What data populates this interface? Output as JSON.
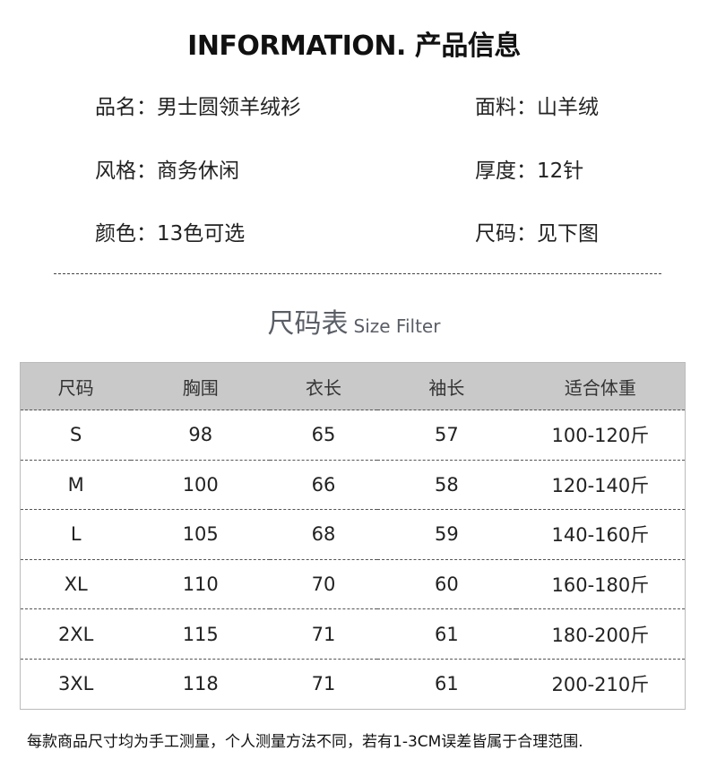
{
  "title": "INFORMATION. 产品信息",
  "info": [
    {
      "label": "品名：",
      "value": "男士圆领羊绒衫"
    },
    {
      "label": "面料：",
      "value": "山羊绒"
    },
    {
      "label": "风格：",
      "value": "商务休闲"
    },
    {
      "label": "厚度：",
      "value": "12针"
    },
    {
      "label": "颜色：",
      "value": "13色可选"
    },
    {
      "label": "尺码：",
      "value": "见下图"
    }
  ],
  "size_heading": {
    "cn": "尺码表",
    "en": "Size Filter"
  },
  "table": {
    "headers": [
      "尺码",
      "胸围",
      "衣长",
      "袖长",
      "适合体重"
    ],
    "rows": [
      [
        "S",
        "98",
        "65",
        "57",
        "100-120斤"
      ],
      [
        "M",
        "100",
        "66",
        "58",
        "120-140斤"
      ],
      [
        "L",
        "105",
        "68",
        "59",
        "140-160斤"
      ],
      [
        "XL",
        "110",
        "70",
        "60",
        "160-180斤"
      ],
      [
        "2XL",
        "115",
        "71",
        "61",
        "180-200斤"
      ],
      [
        "3XL",
        "118",
        "71",
        "61",
        "200-210斤"
      ]
    ]
  },
  "note": "每款商品尺寸均为手工测量，个人测量方法不同，若有1-3CM误差皆属于合理范围."
}
